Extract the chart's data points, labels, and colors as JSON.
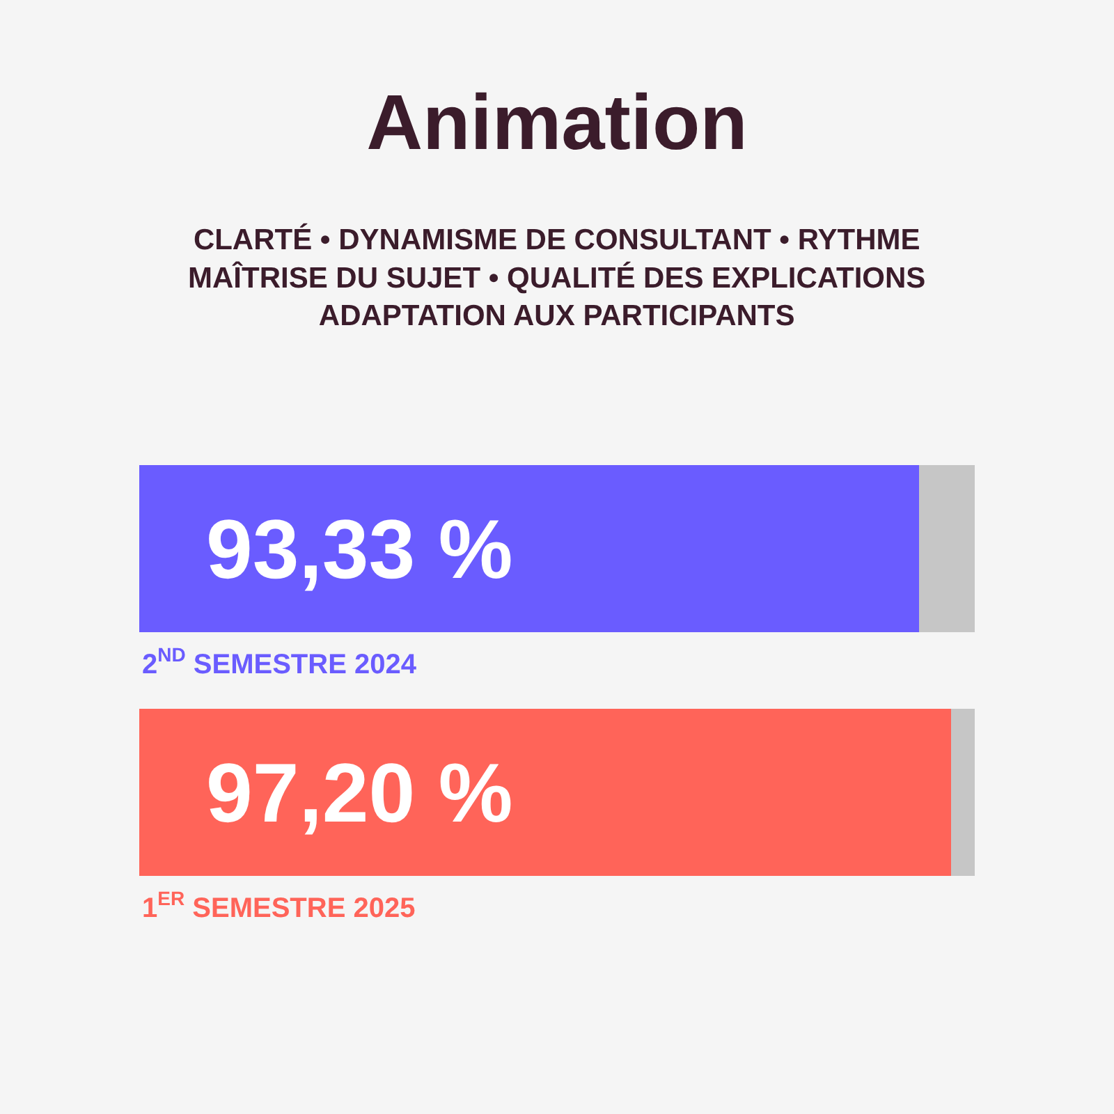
{
  "chart_data": {
    "type": "bar",
    "orientation": "horizontal",
    "stacked": true,
    "title": "Animation",
    "subtitle": "CLARTÉ • DYNAMISME DE CONSULTANT • RYTHME\nMAÎTRISE DU SUJET • QUALITÉ DES EXPLICATIONS\nADAPTATION AUX PARTICIPANTS",
    "categories": [
      "2$^{ND}$ SEMESTRE 2024",
      "1$^{ER}$ SEMESTRE 2025"
    ],
    "series": [
      {
        "colors": [
          "#6a5cff",
          "#ff6459"
        ],
        "values": [
          93.33,
          97.2
        ],
        "value_labels": [
          "93,33 %",
          "97,20 %"
        ]
      },
      {
        "color": "#c6c6c6",
        "values": [
          6.67,
          2.8
        ]
      }
    ],
    "xlim": [
      0,
      100
    ],
    "tick_labels": false,
    "grid": false
  }
}
